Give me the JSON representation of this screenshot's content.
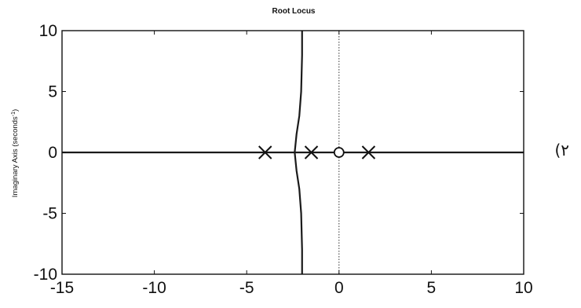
{
  "side_label": "(٢",
  "chart_data": {
    "type": "line",
    "title": "Root Locus",
    "xlabel": "",
    "ylabel": "Imaginary Axis (seconds",
    "ylabel_superscript": "-1",
    "ylabel_suffix": ")",
    "xlim": [
      -15,
      10
    ],
    "ylim": [
      -10,
      10
    ],
    "xticks": [
      -15,
      -10,
      -5,
      0,
      5,
      10
    ],
    "yticks": [
      -10,
      -5,
      0,
      5,
      10
    ],
    "x_tick_labels": [
      "-15",
      "-10",
      "-5",
      "0",
      "5",
      "10"
    ],
    "y_tick_labels": [
      "-10",
      "-5",
      "0",
      "5",
      "10"
    ],
    "grid": false,
    "reference_lines": [
      {
        "orientation": "vertical",
        "x": 0,
        "style": "dotted"
      }
    ],
    "poles": [
      {
        "x": -4.0,
        "y": 0
      },
      {
        "x": -1.5,
        "y": 0
      },
      {
        "x": 1.6,
        "y": 0
      }
    ],
    "zeros": [
      {
        "x": 0.0,
        "y": 0
      }
    ],
    "series": [
      {
        "x": [
          -15,
          10
        ],
        "y": [
          0,
          0
        ]
      },
      {
        "x": [
          -2.4,
          -2.3,
          -2.15,
          -2.05,
          -2.0,
          -2.0
        ],
        "y": [
          0,
          1.5,
          3.0,
          5.0,
          8.0,
          10.0
        ]
      },
      {
        "x": [
          -2.4,
          -2.3,
          -2.15,
          -2.05,
          -2.0,
          -2.0
        ],
        "y": [
          0,
          -1.5,
          -3.0,
          -5.0,
          -8.0,
          -10.0
        ]
      }
    ]
  }
}
